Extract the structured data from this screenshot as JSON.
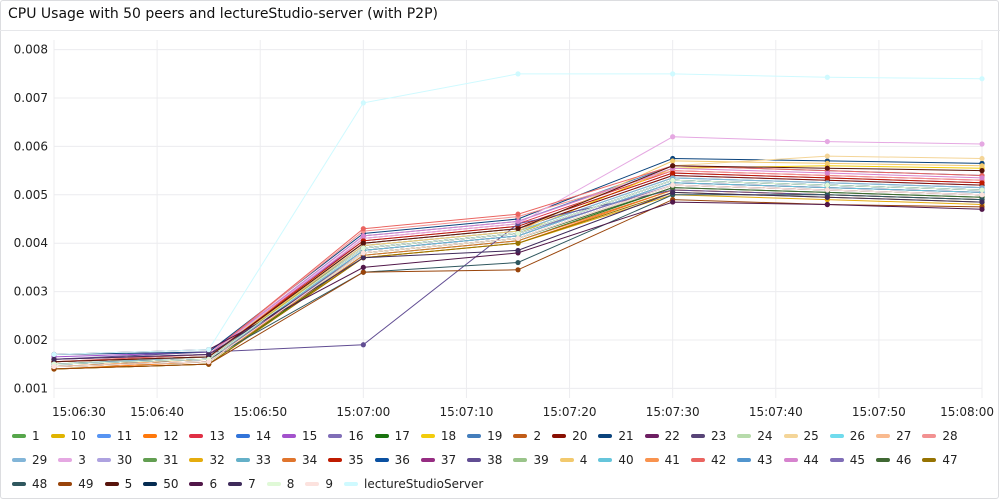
{
  "chart_data": {
    "type": "line",
    "title": "CPU Usage with 50 peers and lectureStudio-server (with P2P)",
    "xlabel": "",
    "ylabel": "",
    "x_ticks": [
      "15:06:30",
      "15:06:40",
      "15:06:50",
      "15:07:00",
      "15:07:10",
      "15:07:20",
      "15:07:30",
      "15:07:40",
      "15:07:50",
      "15:08:00"
    ],
    "y_ticks": [
      "0.001",
      "0.002",
      "0.003",
      "0.004",
      "0.005",
      "0.006",
      "0.007",
      "0.008"
    ],
    "xlim_seconds": [
      0,
      90
    ],
    "ylim": [
      0.0008,
      0.0082
    ],
    "x_seconds": [
      0,
      15,
      30,
      45,
      60,
      75,
      90
    ],
    "legend_position": "bottom",
    "grid": true,
    "series": [
      {
        "name": "1",
        "color": "#56a64b",
        "values": [
          0.0015,
          0.00165,
          0.0039,
          0.0042,
          0.0053,
          0.0052,
          0.0051
        ]
      },
      {
        "name": "10",
        "color": "#e0b400",
        "values": [
          0.00145,
          0.0016,
          0.0038,
          0.0041,
          0.0052,
          0.0051,
          0.005
        ]
      },
      {
        "name": "11",
        "color": "#5794f2",
        "values": [
          0.0016,
          0.0017,
          0.004,
          0.0043,
          0.0054,
          0.0053,
          0.0052
        ]
      },
      {
        "name": "12",
        "color": "#ff780a",
        "values": [
          0.0014,
          0.00155,
          0.0037,
          0.004,
          0.0051,
          0.005,
          0.0049
        ]
      },
      {
        "name": "13",
        "color": "#e02f44",
        "values": [
          0.00155,
          0.00165,
          0.0041,
          0.0044,
          0.0055,
          0.0054,
          0.0053
        ]
      },
      {
        "name": "14",
        "color": "#3274d9",
        "values": [
          0.0015,
          0.0016,
          0.00395,
          0.00425,
          0.00535,
          0.00525,
          0.00515
        ]
      },
      {
        "name": "15",
        "color": "#a352cc",
        "values": [
          0.00165,
          0.00175,
          0.00405,
          0.00435,
          0.00545,
          0.00535,
          0.00525
        ]
      },
      {
        "name": "16",
        "color": "#806eb7",
        "values": [
          0.00145,
          0.00155,
          0.00385,
          0.00415,
          0.00525,
          0.00515,
          0.00505
        ]
      },
      {
        "name": "17",
        "color": "#19730e",
        "values": [
          0.0014,
          0.0015,
          0.00375,
          0.00405,
          0.00515,
          0.00505,
          0.00495
        ]
      },
      {
        "name": "18",
        "color": "#f2cc0c",
        "values": [
          0.0015,
          0.00165,
          0.0039,
          0.0042,
          0.00555,
          0.0056,
          0.00555
        ]
      },
      {
        "name": "19",
        "color": "#447ebc",
        "values": [
          0.0016,
          0.0017,
          0.00415,
          0.00445,
          0.0056,
          0.0055,
          0.0054
        ]
      },
      {
        "name": "2",
        "color": "#c15c17",
        "values": [
          0.00145,
          0.0016,
          0.0038,
          0.0041,
          0.0052,
          0.0051,
          0.005
        ]
      },
      {
        "name": "20",
        "color": "#890f02",
        "values": [
          0.00155,
          0.00165,
          0.004,
          0.0043,
          0.0054,
          0.0053,
          0.0052
        ]
      },
      {
        "name": "21",
        "color": "#0a437c",
        "values": [
          0.0017,
          0.00175,
          0.0042,
          0.0045,
          0.00575,
          0.0057,
          0.00565
        ]
      },
      {
        "name": "22",
        "color": "#6d1f62",
        "values": [
          0.0015,
          0.0016,
          0.0039,
          0.0042,
          0.0053,
          0.0052,
          0.0051
        ]
      },
      {
        "name": "23",
        "color": "#584477",
        "values": [
          0.00145,
          0.00155,
          0.00385,
          0.00415,
          0.00525,
          0.00515,
          0.00505
        ]
      },
      {
        "name": "24",
        "color": "#b7dbab",
        "values": [
          0.0015,
          0.00165,
          0.00395,
          0.00425,
          0.00535,
          0.00525,
          0.00515
        ]
      },
      {
        "name": "25",
        "color": "#f4d598",
        "values": [
          0.00155,
          0.0017,
          0.004,
          0.0043,
          0.0056,
          0.0058,
          0.00575
        ]
      },
      {
        "name": "26",
        "color": "#70dbed",
        "values": [
          0.0015,
          0.0016,
          0.0039,
          0.0042,
          0.0053,
          0.0052,
          0.0051
        ]
      },
      {
        "name": "27",
        "color": "#f9ba8f",
        "values": [
          0.00145,
          0.0016,
          0.00385,
          0.00415,
          0.00525,
          0.00515,
          0.00505
        ]
      },
      {
        "name": "28",
        "color": "#f29191",
        "values": [
          0.0016,
          0.0017,
          0.00425,
          0.00455,
          0.0055,
          0.0054,
          0.0053
        ]
      },
      {
        "name": "29",
        "color": "#82b5d8",
        "values": [
          0.0015,
          0.00165,
          0.00395,
          0.00425,
          0.00535,
          0.00525,
          0.00515
        ]
      },
      {
        "name": "3",
        "color": "#e5a8e2",
        "values": [
          0.00155,
          0.0017,
          0.0041,
          0.0044,
          0.0062,
          0.0061,
          0.00605
        ]
      },
      {
        "name": "30",
        "color": "#aea2e0",
        "values": [
          0.0015,
          0.0016,
          0.0039,
          0.0042,
          0.0053,
          0.0052,
          0.0051
        ]
      },
      {
        "name": "31",
        "color": "#629e51",
        "values": [
          0.00145,
          0.00155,
          0.0038,
          0.0041,
          0.0052,
          0.0051,
          0.005
        ]
      },
      {
        "name": "32",
        "color": "#e5ac0e",
        "values": [
          0.0014,
          0.0015,
          0.0037,
          0.004,
          0.005,
          0.0049,
          0.0048
        ]
      },
      {
        "name": "33",
        "color": "#64b0c8",
        "values": [
          0.0015,
          0.0016,
          0.0038,
          0.0041,
          0.0052,
          0.0051,
          0.005
        ]
      },
      {
        "name": "34",
        "color": "#e0752d",
        "values": [
          0.00145,
          0.00155,
          0.00375,
          0.00405,
          0.0051,
          0.005,
          0.0049
        ]
      },
      {
        "name": "35",
        "color": "#bf1b00",
        "values": [
          0.00155,
          0.00165,
          0.00405,
          0.00435,
          0.00545,
          0.00535,
          0.00525
        ]
      },
      {
        "name": "36",
        "color": "#0a50a1",
        "values": [
          0.0015,
          0.0016,
          0.0039,
          0.0042,
          0.0053,
          0.0052,
          0.0051
        ]
      },
      {
        "name": "37",
        "color": "#962d82",
        "values": [
          0.00145,
          0.00155,
          0.00385,
          0.00415,
          0.00525,
          0.00515,
          0.00505
        ]
      },
      {
        "name": "38",
        "color": "#614d93",
        "values": [
          0.0016,
          0.00175,
          0.0019,
          0.0044,
          0.0051,
          0.005,
          0.0049
        ]
      },
      {
        "name": "39",
        "color": "#9ac48a",
        "values": [
          0.0015,
          0.0016,
          0.0039,
          0.0042,
          0.0053,
          0.0052,
          0.0051
        ]
      },
      {
        "name": "4",
        "color": "#f2c96d",
        "values": [
          0.00155,
          0.00165,
          0.00395,
          0.00425,
          0.0057,
          0.00565,
          0.0056
        ]
      },
      {
        "name": "40",
        "color": "#65c5db",
        "values": [
          0.0015,
          0.0016,
          0.00385,
          0.00415,
          0.00525,
          0.00515,
          0.00505
        ]
      },
      {
        "name": "41",
        "color": "#f9934e",
        "values": [
          0.00145,
          0.00155,
          0.0038,
          0.0041,
          0.0052,
          0.0051,
          0.005
        ]
      },
      {
        "name": "42",
        "color": "#ea6460",
        "values": [
          0.00155,
          0.0017,
          0.0043,
          0.0046,
          0.0056,
          0.0055,
          0.0054
        ]
      },
      {
        "name": "43",
        "color": "#5195ce",
        "values": [
          0.0015,
          0.0016,
          0.0039,
          0.0042,
          0.0053,
          0.0052,
          0.0051
        ]
      },
      {
        "name": "44",
        "color": "#d683ce",
        "values": [
          0.0016,
          0.0017,
          0.00415,
          0.00445,
          0.00555,
          0.00545,
          0.00535
        ]
      },
      {
        "name": "45",
        "color": "#806eb7",
        "values": [
          0.0015,
          0.0016,
          0.0039,
          0.0042,
          0.0052,
          0.0051,
          0.005
        ]
      },
      {
        "name": "46",
        "color": "#3f6833",
        "values": [
          0.00145,
          0.00155,
          0.0038,
          0.0041,
          0.00515,
          0.00505,
          0.00495
        ]
      },
      {
        "name": "47",
        "color": "#967302",
        "values": [
          0.0014,
          0.0015,
          0.0037,
          0.004,
          0.00505,
          0.00495,
          0.00485
        ]
      },
      {
        "name": "48",
        "color": "#2f575e",
        "values": [
          0.0015,
          0.0016,
          0.0034,
          0.0036,
          0.005,
          0.005,
          0.0049
        ]
      },
      {
        "name": "49",
        "color": "#99440a",
        "values": [
          0.0014,
          0.0015,
          0.0034,
          0.00345,
          0.0049,
          0.0048,
          0.00475
        ]
      },
      {
        "name": "5",
        "color": "#58140c",
        "values": [
          0.00155,
          0.00165,
          0.004,
          0.0043,
          0.0056,
          0.00555,
          0.0055
        ]
      },
      {
        "name": "50",
        "color": "#052b51",
        "values": [
          0.0015,
          0.0016,
          0.0039,
          0.0042,
          0.0053,
          0.0052,
          0.0051
        ]
      },
      {
        "name": "6",
        "color": "#511749",
        "values": [
          0.0017,
          0.0018,
          0.0035,
          0.0038,
          0.00485,
          0.0048,
          0.0047
        ]
      },
      {
        "name": "7",
        "color": "#3f2b5b",
        "values": [
          0.0016,
          0.0017,
          0.0037,
          0.00385,
          0.00505,
          0.00495,
          0.00485
        ]
      },
      {
        "name": "8",
        "color": "#e0f9d7",
        "values": [
          0.0015,
          0.0016,
          0.0039,
          0.0042,
          0.0053,
          0.0052,
          0.0051
        ]
      },
      {
        "name": "9",
        "color": "#fce2de",
        "values": [
          0.00145,
          0.00155,
          0.0038,
          0.0041,
          0.0052,
          0.0051,
          0.005
        ]
      },
      {
        "name": "lectureStudioServer",
        "color": "#cffaff",
        "values": [
          0.0017,
          0.0018,
          0.0069,
          0.0075,
          0.0075,
          0.00743,
          0.0074
        ]
      }
    ]
  }
}
